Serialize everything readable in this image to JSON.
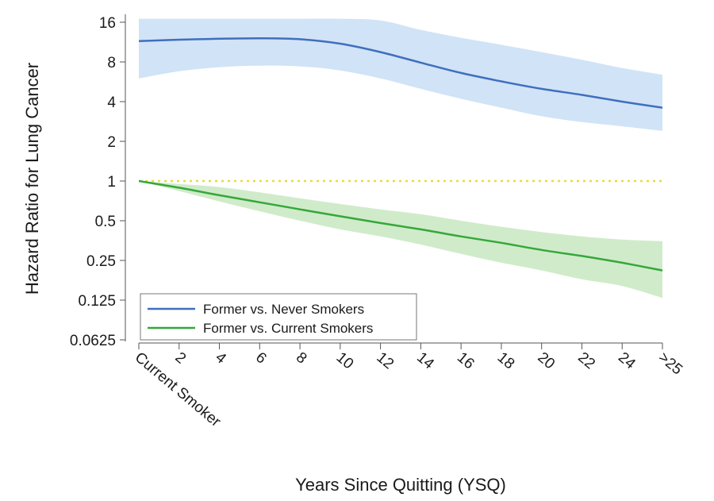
{
  "chart_data": {
    "type": "line",
    "title": "",
    "xlabel": "Years Since Quitting (YSQ)",
    "ylabel": "Hazard Ratio for Lung Cancer",
    "y_scale": "log2",
    "ylim": [
      0.0625,
      16
    ],
    "xlim": [
      0,
      26
    ],
    "y_ticks": [
      {
        "value": 16,
        "label": "16"
      },
      {
        "value": 8,
        "label": "8"
      },
      {
        "value": 4,
        "label": "4"
      },
      {
        "value": 2,
        "label": "2"
      },
      {
        "value": 1,
        "label": "1"
      },
      {
        "value": 0.5,
        "label": "0.5"
      },
      {
        "value": 0.25,
        "label": "0.25"
      },
      {
        "value": 0.125,
        "label": "0.125"
      },
      {
        "value": 0.0625,
        "label": "0.0625"
      }
    ],
    "x_ticks": [
      {
        "value": 0,
        "label": "Current Smoker"
      },
      {
        "value": 2,
        "label": "2"
      },
      {
        "value": 4,
        "label": "4"
      },
      {
        "value": 6,
        "label": "6"
      },
      {
        "value": 8,
        "label": "8"
      },
      {
        "value": 10,
        "label": "10"
      },
      {
        "value": 12,
        "label": "12"
      },
      {
        "value": 14,
        "label": "14"
      },
      {
        "value": 16,
        "label": "16"
      },
      {
        "value": 18,
        "label": "18"
      },
      {
        "value": 20,
        "label": "20"
      },
      {
        "value": 22,
        "label": "22"
      },
      {
        "value": 24,
        "label": "24"
      },
      {
        "value": 26,
        "label": ">25"
      }
    ],
    "reference_line": {
      "y": 1,
      "color": "#e8dc3a",
      "style": "dotted"
    },
    "legend_position": "bottom-left",
    "series": [
      {
        "name": "Former vs. Never Smokers",
        "color": "#3f6fbf",
        "band_color": "#cfe2f6",
        "x": [
          0,
          2,
          4,
          6,
          8,
          10,
          12,
          14,
          16,
          18,
          20,
          22,
          24,
          26
        ],
        "values": [
          11.5,
          11.8,
          12.0,
          12.1,
          11.9,
          11.0,
          9.5,
          7.9,
          6.6,
          5.7,
          5.0,
          4.5,
          4.0,
          3.6
        ],
        "lower": [
          6.0,
          6.8,
          7.3,
          7.5,
          7.4,
          6.9,
          6.0,
          5.0,
          4.2,
          3.6,
          3.1,
          2.8,
          2.6,
          2.4
        ],
        "upper": [
          17.0,
          17.0,
          17.0,
          17.0,
          17.0,
          17.0,
          16.5,
          14.0,
          12.2,
          10.8,
          9.5,
          8.3,
          7.2,
          6.4
        ]
      },
      {
        "name": "Former vs. Current Smokers",
        "color": "#35a83a",
        "band_color": "#cdeac7",
        "x": [
          0,
          2,
          4,
          6,
          8,
          10,
          12,
          14,
          16,
          18,
          20,
          22,
          24,
          26
        ],
        "values": [
          1.0,
          0.89,
          0.78,
          0.69,
          0.61,
          0.54,
          0.48,
          0.43,
          0.38,
          0.34,
          0.3,
          0.27,
          0.24,
          0.21
        ],
        "lower": [
          1.0,
          0.84,
          0.7,
          0.59,
          0.5,
          0.43,
          0.38,
          0.33,
          0.28,
          0.24,
          0.21,
          0.18,
          0.16,
          0.13
        ],
        "upper": [
          1.0,
          0.95,
          0.9,
          0.82,
          0.74,
          0.67,
          0.61,
          0.56,
          0.5,
          0.45,
          0.41,
          0.38,
          0.36,
          0.35
        ]
      }
    ]
  }
}
